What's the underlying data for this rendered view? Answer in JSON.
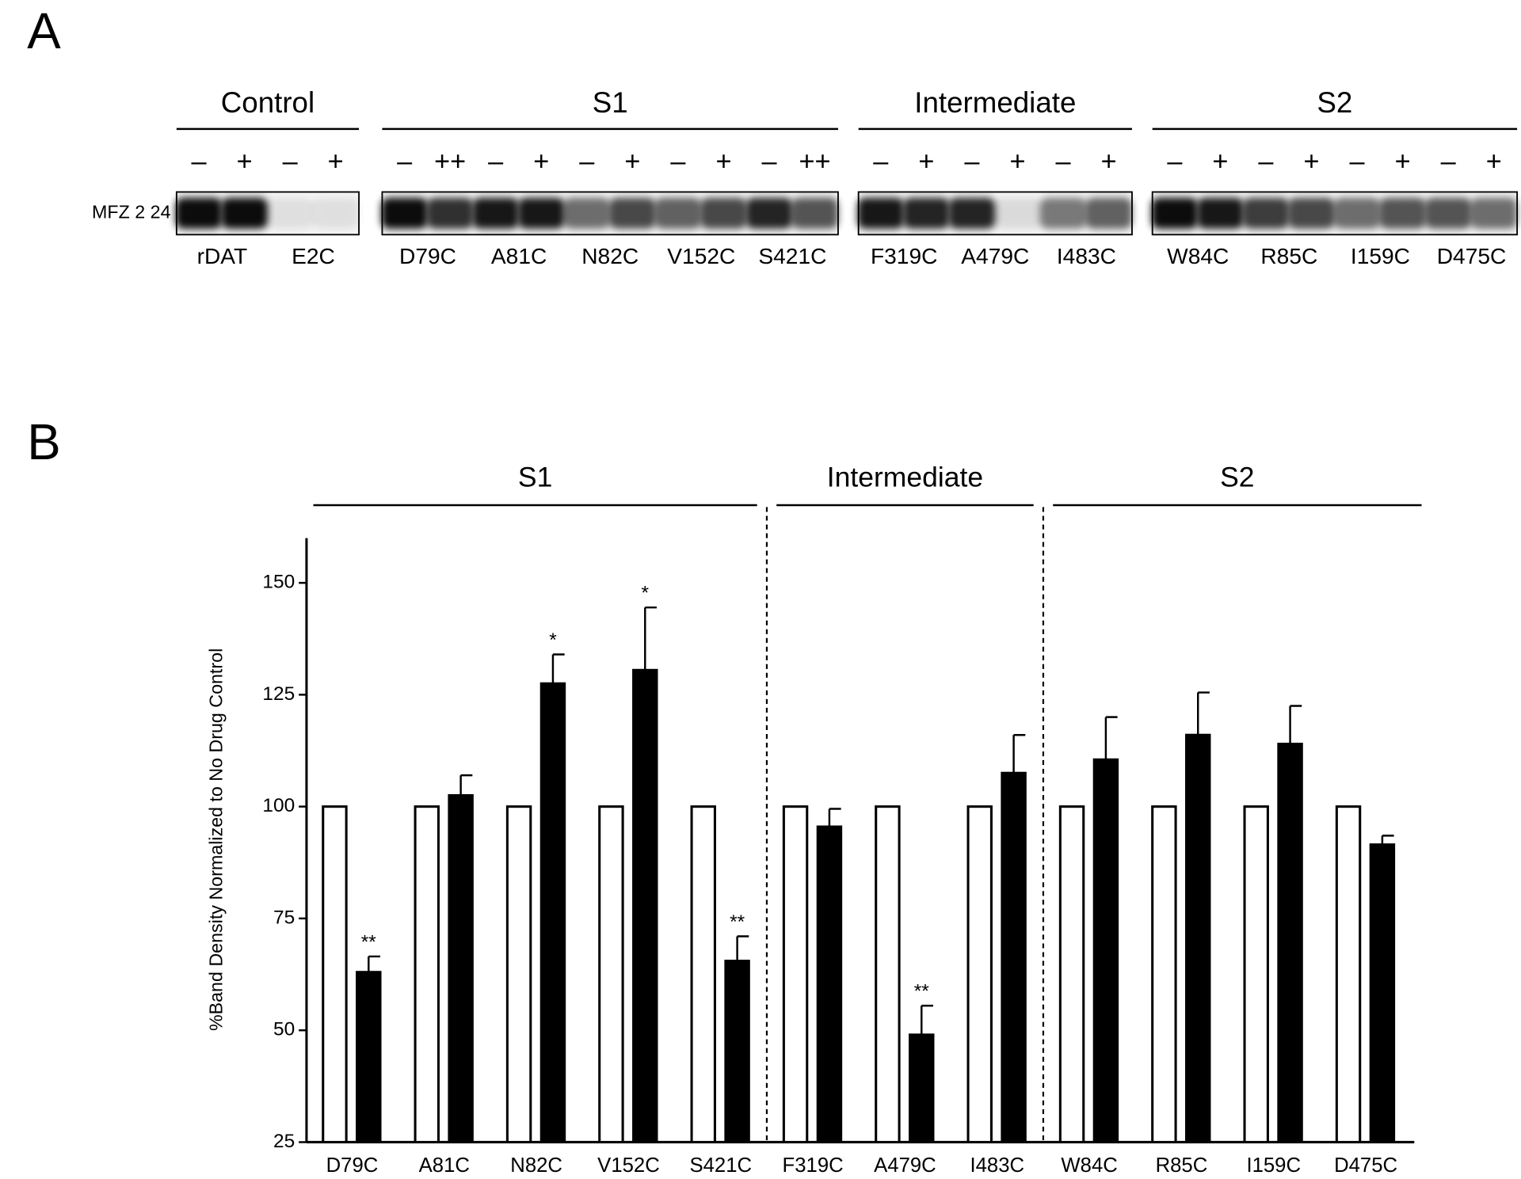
{
  "panel_a": {
    "label": "A",
    "row_label": "MFZ 2 24",
    "groups": [
      {
        "label": "Control",
        "signs": [
          "–",
          "+",
          "–",
          "+"
        ],
        "lanes": [
          "rDAT",
          "E2C"
        ]
      },
      {
        "label": "S1",
        "signs": [
          "–",
          "++",
          "–",
          "+",
          "–",
          "+",
          "–",
          "+",
          "–",
          "++"
        ],
        "lanes": [
          "D79C",
          "A81C",
          "N82C",
          "V152C",
          "S421C"
        ]
      },
      {
        "label": "Intermediate",
        "signs": [
          "–",
          "+",
          "–",
          "+",
          "–",
          "+"
        ],
        "lanes": [
          "F319C",
          "A479C",
          "I483C"
        ]
      },
      {
        "label": "S2",
        "signs": [
          "–",
          "+",
          "–",
          "+",
          "–",
          "+",
          "–",
          "+"
        ],
        "lanes": [
          "W84C",
          "R85C",
          "I159C",
          "D475C"
        ]
      }
    ]
  },
  "chart_data": {
    "type": "bar",
    "panel_label": "B",
    "y_label": "%Band Density Normalized to No Drug Control",
    "groups": [
      {
        "label": "S1",
        "categories": [
          "D79C",
          "A81C",
          "N82C",
          "V152C",
          "S421C"
        ]
      },
      {
        "label": "Intermediate",
        "categories": [
          "F319C",
          "A479C",
          "I483C"
        ]
      },
      {
        "label": "S2",
        "categories": [
          "W84C",
          "R85C",
          "I159C",
          "D475C"
        ]
      }
    ],
    "series": [
      {
        "color": "#ffffff",
        "values": [
          100,
          100,
          100,
          100,
          100,
          100,
          100,
          100,
          100,
          100,
          100,
          100
        ]
      },
      {
        "color": "#000000",
        "values": [
          63,
          102.5,
          127.5,
          130.5,
          65.5,
          95.5,
          49,
          107.5,
          110.5,
          116,
          114,
          91.5
        ],
        "errors": [
          3.5,
          4.5,
          6.5,
          14,
          5.5,
          4,
          6.5,
          8.5,
          9.5,
          9.5,
          8.5,
          2
        ],
        "annotations": [
          "**",
          null,
          "*",
          "*",
          "**",
          null,
          "**",
          null,
          null,
          null,
          null,
          null
        ]
      }
    ],
    "ylim": [
      25,
      160
    ],
    "yticks": [
      25,
      50,
      75,
      100,
      125,
      150
    ]
  }
}
